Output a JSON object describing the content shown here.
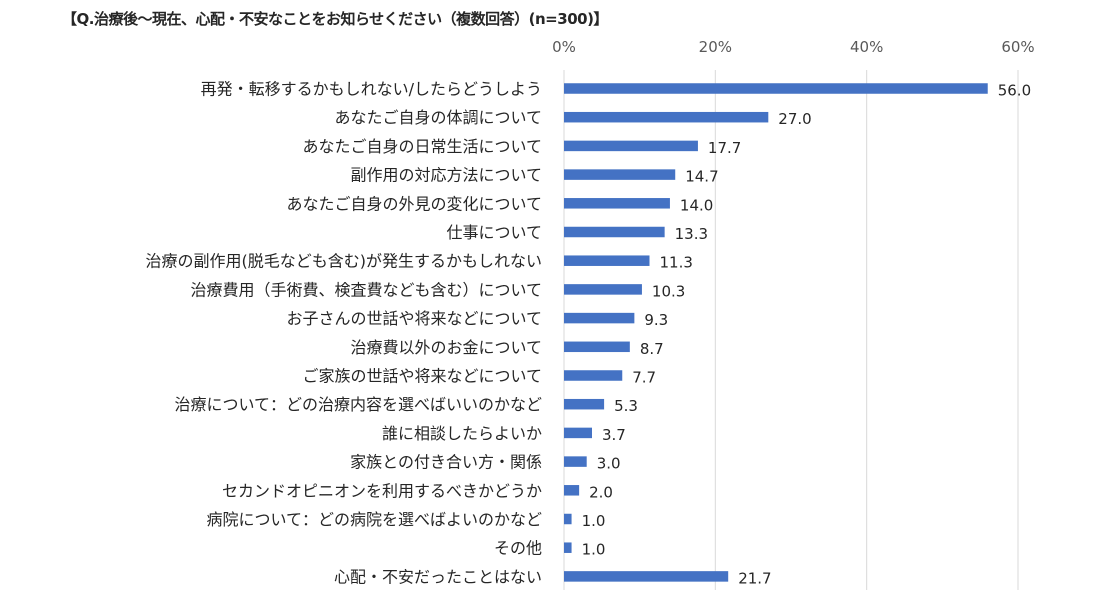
{
  "chart_data": {
    "type": "bar",
    "orientation": "horizontal",
    "title": "【Q.治療後～現在、心配・不安なことをお知らせください（複数回答）(n=300)】",
    "categories": [
      "再発・転移するかもしれない/したらどうしよう",
      "あなたご自身の体調について",
      "あなたご自身の日常生活について",
      "副作用の対応方法について",
      "あなたご自身の外見の変化について",
      "仕事について",
      "治療の副作用(脱毛なども含む)が発生するかもしれない",
      "治療費用（手術費、検査費なども含む）について",
      "お子さんの世話や将来などについて",
      "治療費以外のお金について",
      "ご家族の世話や将来などについて",
      "治療について：どの治療内容を選べばいいのかなど",
      "誰に相談したらよいか",
      "家族との付き合い方・関係",
      "セカンドオピニオンを利用するべきかどうか",
      "病院について：どの病院を選べばよいのかなど",
      "その他",
      "心配・不安だったことはない"
    ],
    "values": [
      56.0,
      27.0,
      17.7,
      14.7,
      14.0,
      13.3,
      11.3,
      10.3,
      9.3,
      8.7,
      7.7,
      5.3,
      3.7,
      3.0,
      2.0,
      1.0,
      1.0,
      21.7
    ],
    "value_labels": [
      "56.0",
      "27.0",
      "17.7",
      "14.7",
      "14.0",
      "13.3",
      "11.3",
      "10.3",
      "9.3",
      "8.7",
      "7.7",
      "5.3",
      "3.7",
      "3.0",
      "2.0",
      "1.0",
      "1.0",
      "21.7"
    ],
    "xticks": [
      0,
      20,
      40,
      60
    ],
    "xtick_labels": [
      "0%",
      "20%",
      "40%",
      "60%"
    ],
    "xlim": [
      0,
      60
    ],
    "xaxis_position": "top",
    "grid": true,
    "bar_color": "#4472C4",
    "grid_color": "#D9D9D9"
  }
}
